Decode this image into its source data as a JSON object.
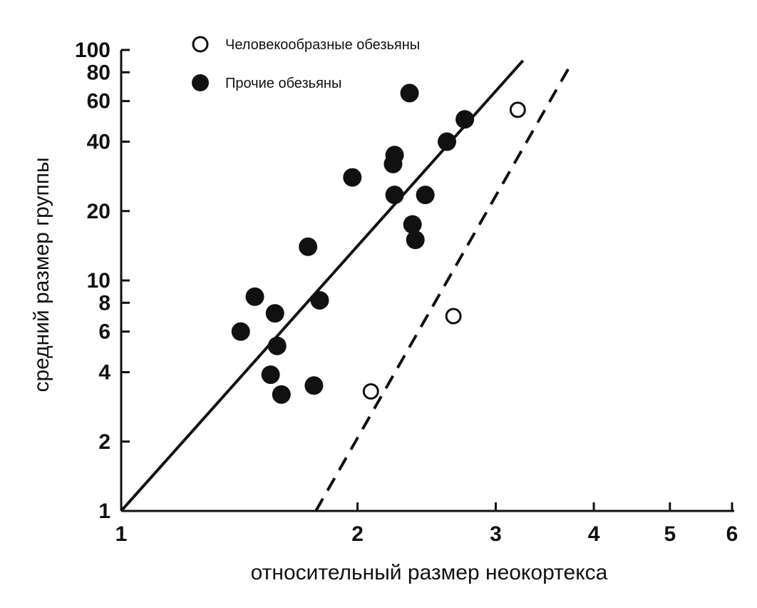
{
  "chart_data": {
    "type": "scatter",
    "title": "",
    "xlabel": "относительный размер неокортекса",
    "ylabel": "средний размер группы",
    "x_scale": "log",
    "y_scale": "log",
    "xlim": [
      1,
      6
    ],
    "ylim": [
      1,
      100
    ],
    "x_ticks": [
      1,
      2,
      3,
      4,
      5,
      6
    ],
    "y_ticks": [
      1,
      2,
      4,
      6,
      8,
      10,
      20,
      40,
      60,
      80,
      100
    ],
    "grid": false,
    "legend_position": "top-left",
    "series": [
      {
        "name": "Человекообразные обезьяны",
        "marker": "open-circle",
        "points": [
          [
            2.08,
            3.3
          ],
          [
            2.65,
            7.0
          ],
          [
            3.2,
            55.0
          ]
        ]
      },
      {
        "name": "Прочие обезьяны",
        "marker": "filled-circle",
        "points": [
          [
            1.42,
            6.0
          ],
          [
            1.48,
            8.5
          ],
          [
            1.55,
            3.9
          ],
          [
            1.57,
            7.2
          ],
          [
            1.58,
            5.2
          ],
          [
            1.6,
            3.2
          ],
          [
            1.73,
            14.0
          ],
          [
            1.76,
            3.5
          ],
          [
            1.79,
            8.2
          ],
          [
            1.97,
            28.0
          ],
          [
            2.22,
            32.0
          ],
          [
            2.23,
            35.0
          ],
          [
            2.23,
            23.5
          ],
          [
            2.33,
            65.0
          ],
          [
            2.35,
            17.5
          ],
          [
            2.37,
            15.0
          ],
          [
            2.44,
            23.5
          ],
          [
            2.6,
            40.0
          ],
          [
            2.74,
            50.0
          ]
        ]
      }
    ],
    "lines": [
      {
        "name": "regression-other-monkeys",
        "style": "solid",
        "from": [
          1,
          1
        ],
        "to": [
          3.25,
          90
        ]
      },
      {
        "name": "regression-apes",
        "style": "dashed",
        "from": [
          1.77,
          1
        ],
        "to": [
          3.75,
          88
        ]
      }
    ]
  }
}
